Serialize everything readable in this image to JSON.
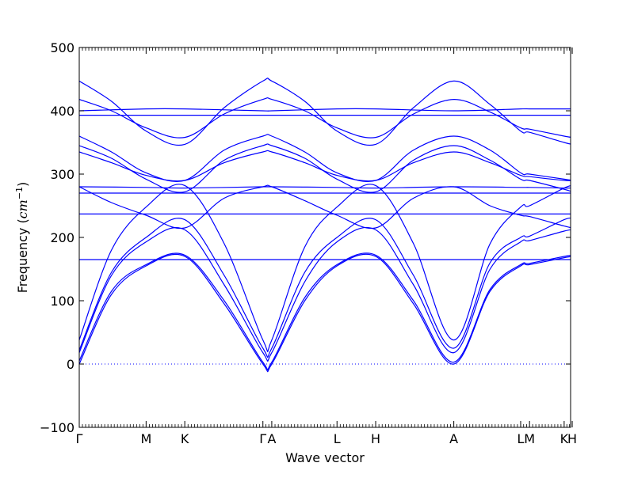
{
  "chart_data": {
    "type": "line",
    "title": "",
    "xlabel": "Wave vector",
    "ylabel": "Frequency ($cm^{-1}$)",
    "ylabel_parts": {
      "prefix": "Frequency (",
      "unit": "cm",
      "exp": "−1",
      "suffix": ")"
    },
    "xlim": [
      0,
      6.1
    ],
    "ylim": [
      -100,
      500
    ],
    "yticks": [
      -100,
      0,
      100,
      200,
      300,
      400,
      500
    ],
    "zero_line": {
      "y": 0,
      "style": "dotted"
    },
    "grid": false,
    "legend": "none",
    "line_color": "#0000ff",
    "ref_line_color": "#0000ff",
    "xticks": [
      {
        "x": 0.0,
        "label": "Γ",
        "serif": true
      },
      {
        "x": 0.83,
        "label": "M"
      },
      {
        "x": 1.31,
        "label": "K"
      },
      {
        "x": 2.28,
        "label": "Γ",
        "serif": true
      },
      {
        "x": 2.39,
        "label": "A"
      },
      {
        "x": 3.2,
        "label": "L"
      },
      {
        "x": 3.68,
        "label": "H"
      },
      {
        "x": 4.65,
        "label": "A"
      },
      {
        "x": 5.48,
        "label": "L"
      },
      {
        "x": 5.59,
        "label": "M"
      },
      {
        "x": 6.02,
        "label": "K"
      },
      {
        "x": 6.12,
        "label": "H"
      }
    ],
    "segments": [
      {
        "name": "Γ-M",
        "x0": 0.0,
        "x1": 0.83
      },
      {
        "name": "M-K",
        "x0": 0.83,
        "x1": 1.31
      },
      {
        "name": "K-Γ",
        "x0": 1.31,
        "x1": 2.28
      },
      {
        "name": "Γ-A",
        "x0": 2.28,
        "x1": 2.39
      },
      {
        "name": "A-L",
        "x0": 2.39,
        "x1": 3.2
      },
      {
        "name": "L-H",
        "x0": 3.2,
        "x1": 3.68
      },
      {
        "name": "H-A",
        "x0": 3.68,
        "x1": 4.65
      },
      {
        "name": "A-L",
        "x0": 4.65,
        "x1": 5.48
      },
      {
        "name": "L-M",
        "x0": 5.48,
        "x1": 5.59
      },
      {
        "name": "M-K",
        "x0": 5.59,
        "x1": 6.02
      },
      {
        "name": "K-H",
        "x0": 6.02,
        "x1": 6.12
      }
    ],
    "series": [
      {
        "values": [
          [
            0.0,
            0
          ],
          [
            0.4,
            110
          ],
          [
            0.83,
            155
          ],
          [
            1.31,
            170
          ],
          [
            1.8,
            95
          ],
          [
            2.28,
            0
          ],
          [
            2.39,
            0
          ],
          [
            2.8,
            100
          ],
          [
            3.2,
            155
          ],
          [
            3.68,
            170
          ],
          [
            4.15,
            95
          ],
          [
            4.65,
            0
          ],
          [
            5.1,
            115
          ],
          [
            5.48,
            155
          ],
          [
            5.59,
            157
          ],
          [
            6.02,
            168
          ],
          [
            6.12,
            170
          ]
        ]
      },
      {
        "values": [
          [
            0.0,
            5
          ],
          [
            0.4,
            115
          ],
          [
            0.83,
            157
          ],
          [
            1.31,
            172
          ],
          [
            1.8,
            100
          ],
          [
            2.28,
            3
          ],
          [
            2.39,
            3
          ],
          [
            2.8,
            105
          ],
          [
            3.2,
            157
          ],
          [
            3.68,
            172
          ],
          [
            4.15,
            100
          ],
          [
            4.65,
            3
          ],
          [
            5.1,
            118
          ],
          [
            5.48,
            157
          ],
          [
            5.59,
            159
          ],
          [
            6.02,
            170
          ],
          [
            6.12,
            172
          ]
        ]
      },
      {
        "values": [
          [
            0.0,
            18
          ],
          [
            0.4,
            140
          ],
          [
            0.83,
            193
          ],
          [
            1.31,
            212
          ],
          [
            1.8,
            125
          ],
          [
            2.28,
            18
          ],
          [
            2.39,
            18
          ],
          [
            2.8,
            130
          ],
          [
            3.2,
            193
          ],
          [
            3.68,
            212
          ],
          [
            4.15,
            125
          ],
          [
            4.65,
            18
          ],
          [
            5.1,
            150
          ],
          [
            5.48,
            193
          ],
          [
            5.59,
            195
          ],
          [
            6.02,
            210
          ],
          [
            6.12,
            212
          ]
        ]
      },
      {
        "values": [
          [
            0.0,
            22
          ],
          [
            0.4,
            145
          ],
          [
            0.83,
            200
          ],
          [
            1.31,
            228
          ],
          [
            1.8,
            140
          ],
          [
            2.28,
            25
          ],
          [
            2.39,
            25
          ],
          [
            2.8,
            145
          ],
          [
            3.2,
            200
          ],
          [
            3.68,
            228
          ],
          [
            4.15,
            140
          ],
          [
            4.65,
            25
          ],
          [
            5.1,
            160
          ],
          [
            5.48,
            200
          ],
          [
            5.59,
            202
          ],
          [
            6.02,
            228
          ],
          [
            6.12,
            230
          ]
        ]
      },
      {
        "values": [
          [
            0.0,
            38
          ],
          [
            0.4,
            180
          ],
          [
            0.83,
            248
          ],
          [
            1.31,
            282
          ],
          [
            1.8,
            190
          ],
          [
            2.28,
            38
          ],
          [
            2.39,
            38
          ],
          [
            2.8,
            185
          ],
          [
            3.2,
            248
          ],
          [
            3.68,
            282
          ],
          [
            4.15,
            190
          ],
          [
            4.65,
            38
          ],
          [
            5.1,
            190
          ],
          [
            5.48,
            248
          ],
          [
            5.59,
            250
          ],
          [
            6.02,
            278
          ],
          [
            6.12,
            282
          ]
        ]
      },
      {
        "values": [
          [
            0.0,
            280
          ],
          [
            0.4,
            255
          ],
          [
            0.83,
            235
          ],
          [
            1.31,
            215
          ],
          [
            1.8,
            262
          ],
          [
            2.28,
            280
          ],
          [
            2.39,
            280
          ],
          [
            2.8,
            258
          ],
          [
            3.2,
            235
          ],
          [
            3.68,
            215
          ],
          [
            4.15,
            262
          ],
          [
            4.65,
            280
          ],
          [
            5.1,
            250
          ],
          [
            5.48,
            235
          ],
          [
            5.59,
            233
          ],
          [
            6.02,
            218
          ],
          [
            6.12,
            215
          ]
        ]
      },
      {
        "values": [
          [
            0.0,
            165
          ],
          [
            0.83,
            165
          ],
          [
            1.31,
            165
          ],
          [
            2.28,
            165
          ],
          [
            2.39,
            165
          ],
          [
            3.2,
            165
          ],
          [
            3.68,
            165
          ],
          [
            4.65,
            165
          ],
          [
            5.48,
            165
          ],
          [
            5.59,
            165
          ],
          [
            6.02,
            165
          ],
          [
            6.12,
            165
          ]
        ]
      },
      {
        "values": [
          [
            0.0,
            237
          ],
          [
            0.83,
            237
          ],
          [
            1.31,
            237
          ],
          [
            2.28,
            237
          ],
          [
            2.39,
            237
          ],
          [
            3.2,
            237
          ],
          [
            3.68,
            237
          ],
          [
            4.65,
            237
          ],
          [
            5.48,
            237
          ],
          [
            5.59,
            237
          ],
          [
            6.02,
            237
          ],
          [
            6.12,
            237
          ]
        ]
      },
      {
        "values": [
          [
            0.0,
            270
          ],
          [
            0.83,
            270
          ],
          [
            1.31,
            270
          ],
          [
            2.28,
            270
          ],
          [
            2.39,
            270
          ],
          [
            3.2,
            270
          ],
          [
            3.68,
            270
          ],
          [
            4.65,
            270
          ],
          [
            5.48,
            270
          ],
          [
            5.59,
            270
          ],
          [
            6.02,
            270
          ],
          [
            6.12,
            270
          ]
        ]
      },
      {
        "values": [
          [
            0.0,
            280
          ],
          [
            0.83,
            279
          ],
          [
            1.31,
            278
          ],
          [
            2.28,
            280
          ],
          [
            2.39,
            280
          ],
          [
            3.2,
            279
          ],
          [
            3.68,
            278
          ],
          [
            4.65,
            280
          ],
          [
            5.48,
            279
          ],
          [
            5.59,
            279
          ],
          [
            6.02,
            278
          ],
          [
            6.12,
            278
          ]
        ]
      },
      {
        "values": [
          [
            0.0,
            335
          ],
          [
            0.4,
            318
          ],
          [
            0.83,
            298
          ],
          [
            1.31,
            290
          ],
          [
            1.8,
            318
          ],
          [
            2.28,
            335
          ],
          [
            2.39,
            335
          ],
          [
            2.8,
            318
          ],
          [
            3.2,
            298
          ],
          [
            3.68,
            290
          ],
          [
            4.15,
            318
          ],
          [
            4.65,
            335
          ],
          [
            5.1,
            318
          ],
          [
            5.48,
            298
          ],
          [
            5.59,
            296
          ],
          [
            6.02,
            290
          ],
          [
            6.12,
            290
          ]
        ]
      },
      {
        "values": [
          [
            0.0,
            345
          ],
          [
            0.4,
            325
          ],
          [
            0.83,
            292
          ],
          [
            1.31,
            272
          ],
          [
            1.8,
            322
          ],
          [
            2.28,
            345
          ],
          [
            2.39,
            345
          ],
          [
            2.8,
            325
          ],
          [
            3.2,
            292
          ],
          [
            3.68,
            272
          ],
          [
            4.15,
            322
          ],
          [
            4.65,
            345
          ],
          [
            5.1,
            322
          ],
          [
            5.48,
            292
          ],
          [
            5.59,
            290
          ],
          [
            6.02,
            276
          ],
          [
            6.12,
            272
          ]
        ]
      },
      {
        "values": [
          [
            0.0,
            360
          ],
          [
            0.4,
            335
          ],
          [
            0.83,
            302
          ],
          [
            1.31,
            290
          ],
          [
            1.8,
            338
          ],
          [
            2.28,
            360
          ],
          [
            2.39,
            360
          ],
          [
            2.8,
            335
          ],
          [
            3.2,
            302
          ],
          [
            3.68,
            290
          ],
          [
            4.15,
            338
          ],
          [
            4.65,
            360
          ],
          [
            5.1,
            338
          ],
          [
            5.48,
            302
          ],
          [
            5.59,
            300
          ],
          [
            6.02,
            292
          ],
          [
            6.12,
            290
          ]
        ]
      },
      {
        "values": [
          [
            0.0,
            393
          ],
          [
            0.83,
            393
          ],
          [
            1.31,
            393
          ],
          [
            2.28,
            393
          ],
          [
            2.39,
            393
          ],
          [
            3.2,
            393
          ],
          [
            3.68,
            393
          ],
          [
            4.65,
            393
          ],
          [
            5.48,
            393
          ],
          [
            5.59,
            393
          ],
          [
            6.02,
            393
          ],
          [
            6.12,
            393
          ]
        ]
      },
      {
        "values": [
          [
            0.0,
            400
          ],
          [
            0.83,
            403
          ],
          [
            1.31,
            403
          ],
          [
            2.28,
            400
          ],
          [
            2.39,
            400
          ],
          [
            3.2,
            403
          ],
          [
            3.68,
            403
          ],
          [
            4.65,
            400
          ],
          [
            5.48,
            403
          ],
          [
            5.59,
            403
          ],
          [
            6.02,
            403
          ],
          [
            6.12,
            403
          ]
        ]
      },
      {
        "values": [
          [
            0.0,
            418
          ],
          [
            0.4,
            400
          ],
          [
            0.83,
            373
          ],
          [
            1.31,
            358
          ],
          [
            1.8,
            395
          ],
          [
            2.28,
            418
          ],
          [
            2.39,
            418
          ],
          [
            2.8,
            400
          ],
          [
            3.2,
            373
          ],
          [
            3.68,
            358
          ],
          [
            4.15,
            395
          ],
          [
            4.65,
            418
          ],
          [
            5.1,
            398
          ],
          [
            5.48,
            373
          ],
          [
            5.59,
            371
          ],
          [
            6.02,
            360
          ],
          [
            6.12,
            358
          ]
        ]
      },
      {
        "values": [
          [
            0.0,
            447
          ],
          [
            0.4,
            415
          ],
          [
            0.83,
            368
          ],
          [
            1.31,
            347
          ],
          [
            1.8,
            405
          ],
          [
            2.28,
            447
          ],
          [
            2.39,
            447
          ],
          [
            2.8,
            415
          ],
          [
            3.2,
            368
          ],
          [
            3.68,
            347
          ],
          [
            4.15,
            405
          ],
          [
            4.65,
            447
          ],
          [
            5.1,
            410
          ],
          [
            5.48,
            368
          ],
          [
            5.59,
            366
          ],
          [
            6.02,
            350
          ],
          [
            6.12,
            347
          ]
        ]
      }
    ]
  }
}
